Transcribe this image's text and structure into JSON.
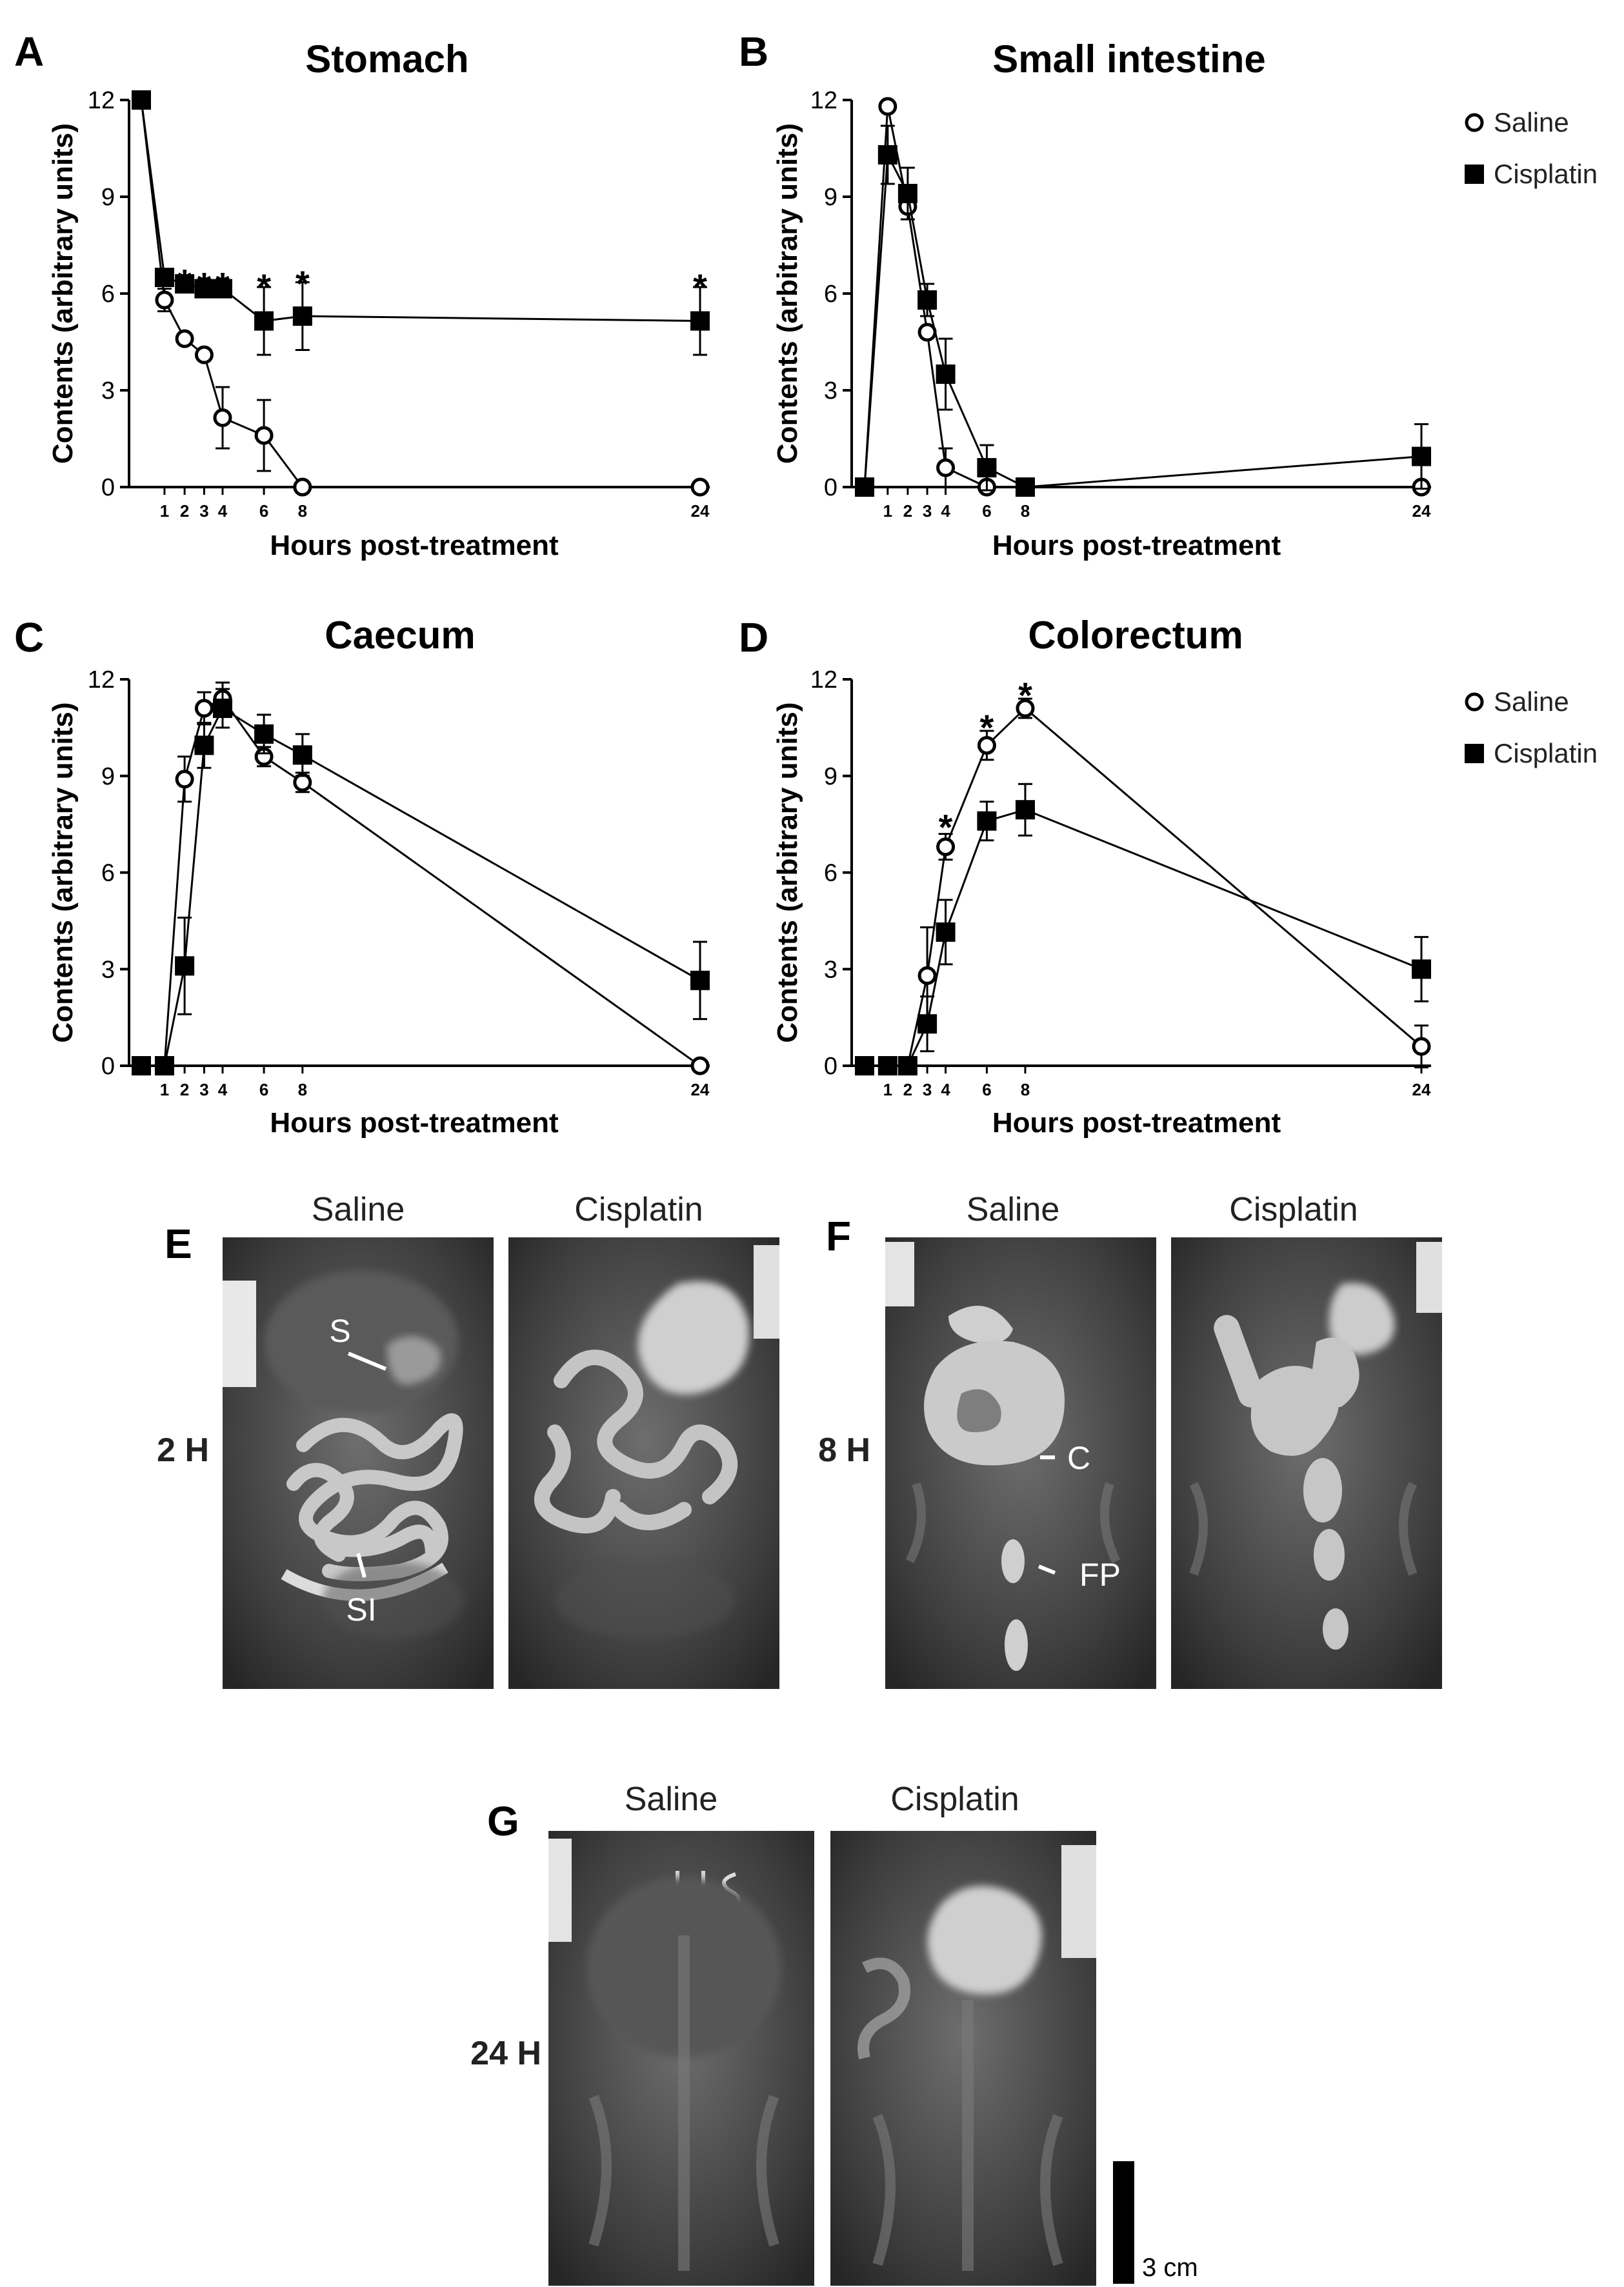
{
  "chart_data": [
    {
      "panel": "A",
      "type": "line",
      "title": "Stomach",
      "xlabel": "Hours post-treatment",
      "ylabel": "Contents (arbitrary units)",
      "ylim": [
        0,
        12
      ],
      "yticks": [
        "0",
        "3",
        "6",
        "9",
        "12"
      ],
      "xticks": [
        "1",
        "2",
        "3",
        "4",
        "6",
        "8",
        "24"
      ],
      "legend": false,
      "series": [
        {
          "name": "Saline",
          "marker": "open-circle",
          "points": [
            {
              "x": 0,
              "y": 12,
              "err": 0
            },
            {
              "x": 1,
              "y": 5.8,
              "err": 0.35
            },
            {
              "x": 2,
              "y": 4.6,
              "err": 0
            },
            {
              "x": 3,
              "y": 4.1,
              "err": 0
            },
            {
              "x": 4,
              "y": 2.15,
              "err": 0.95
            },
            {
              "x": 6,
              "y": 1.6,
              "err": 1.1
            },
            {
              "x": 8,
              "y": 0,
              "err": 0
            },
            {
              "x": 24,
              "y": 0,
              "err": 0
            }
          ]
        },
        {
          "name": "Cisplatin",
          "marker": "filled-square",
          "points": [
            {
              "x": 0,
              "y": 12,
              "err": 0
            },
            {
              "x": 1,
              "y": 6.5,
              "err": 0
            },
            {
              "x": 2,
              "y": 6.3,
              "err": 0
            },
            {
              "x": 3,
              "y": 6.15,
              "err": 0
            },
            {
              "x": 4,
              "y": 6.15,
              "err": 0
            },
            {
              "x": 6,
              "y": 5.15,
              "err": 1.05
            },
            {
              "x": 8,
              "y": 5.3,
              "err": 1.05
            },
            {
              "x": 24,
              "y": 5.15,
              "err": 1.05
            }
          ]
        }
      ],
      "significance": [
        {
          "x": 2,
          "y": 6.65
        },
        {
          "x": 3,
          "y": 6.55
        },
        {
          "x": 4,
          "y": 6.55
        },
        {
          "x": 6,
          "y": 6.5
        },
        {
          "x": 8,
          "y": 6.6
        },
        {
          "x": 24,
          "y": 6.5
        }
      ],
      "star_label": "*"
    },
    {
      "panel": "B",
      "type": "line",
      "title": "Small intestine",
      "xlabel": "Hours post-treatment",
      "ylabel": "Contents (arbitrary units)",
      "ylim": [
        0,
        12
      ],
      "yticks": [
        "0",
        "3",
        "6",
        "9",
        "12"
      ],
      "xticks": [
        "1",
        "2",
        "3",
        "4",
        "6",
        "8",
        "24"
      ],
      "legend": true,
      "legend_position": "top-right",
      "series": [
        {
          "name": "Saline",
          "marker": "open-circle",
          "points": [
            {
              "x": 0,
              "y": 0,
              "err": 0
            },
            {
              "x": 1,
              "y": 11.8,
              "err": 0
            },
            {
              "x": 2,
              "y": 8.7,
              "err": 0.4
            },
            {
              "x": 3,
              "y": 4.8,
              "err": 0
            },
            {
              "x": 4,
              "y": 0.6,
              "err": 0.6
            },
            {
              "x": 6,
              "y": 0,
              "err": 0
            },
            {
              "x": 8,
              "y": 0,
              "err": 0
            },
            {
              "x": 24,
              "y": 0,
              "err": 0
            }
          ]
        },
        {
          "name": "Cisplatin",
          "marker": "filled-square",
          "points": [
            {
              "x": 0,
              "y": 0,
              "err": 0
            },
            {
              "x": 1,
              "y": 10.3,
              "err": 0.9
            },
            {
              "x": 2,
              "y": 9.1,
              "err": 0.8
            },
            {
              "x": 3,
              "y": 5.8,
              "err": 0.5
            },
            {
              "x": 4,
              "y": 3.5,
              "err": 1.1
            },
            {
              "x": 6,
              "y": 0.6,
              "err": 0.7
            },
            {
              "x": 8,
              "y": 0,
              "err": 0
            },
            {
              "x": 24,
              "y": 0.95,
              "err": 1.0
            }
          ]
        }
      ]
    },
    {
      "panel": "C",
      "type": "line",
      "title": "Caecum",
      "xlabel": "Hours post-treatment",
      "ylabel": "Contents (arbitrary units)",
      "ylim": [
        0,
        12
      ],
      "yticks": [
        "0",
        "3",
        "6",
        "9",
        "12"
      ],
      "xticks": [
        "1",
        "2",
        "3",
        "4",
        "6",
        "8",
        "24"
      ],
      "legend": false,
      "series": [
        {
          "name": "Saline",
          "marker": "open-circle",
          "points": [
            {
              "x": 0,
              "y": 0,
              "err": 0
            },
            {
              "x": 1,
              "y": 0,
              "err": 0
            },
            {
              "x": 2,
              "y": 8.9,
              "err": 0.7
            },
            {
              "x": 3,
              "y": 11.1,
              "err": 0.5
            },
            {
              "x": 4,
              "y": 11.4,
              "err": 0.5
            },
            {
              "x": 6,
              "y": 9.6,
              "err": 0.3
            },
            {
              "x": 8,
              "y": 8.8,
              "err": 0.3
            },
            {
              "x": 24,
              "y": 0,
              "err": 0
            }
          ]
        },
        {
          "name": "Cisplatin",
          "marker": "filled-square",
          "points": [
            {
              "x": 0,
              "y": 0,
              "err": 0
            },
            {
              "x": 1,
              "y": 0,
              "err": 0
            },
            {
              "x": 2,
              "y": 3.1,
              "err": 1.5
            },
            {
              "x": 3,
              "y": 9.95,
              "err": 0.7
            },
            {
              "x": 4,
              "y": 11.1,
              "err": 0.6
            },
            {
              "x": 6,
              "y": 10.3,
              "err": 0.6
            },
            {
              "x": 8,
              "y": 9.65,
              "err": 0.65
            },
            {
              "x": 24,
              "y": 2.65,
              "err": 1.2
            }
          ]
        }
      ]
    },
    {
      "panel": "D",
      "type": "line",
      "title": "Colorectum",
      "xlabel": "Hours post-treatment",
      "ylabel": "Contents (arbitrary units)",
      "ylim": [
        0,
        12
      ],
      "yticks": [
        "0",
        "3",
        "6",
        "9",
        "12"
      ],
      "xticks": [
        "1",
        "2",
        "3",
        "4",
        "6",
        "8",
        "24"
      ],
      "legend": true,
      "legend_position": "top-right",
      "series": [
        {
          "name": "Saline",
          "marker": "open-circle",
          "points": [
            {
              "x": 0,
              "y": 0,
              "err": 0
            },
            {
              "x": 1,
              "y": 0,
              "err": 0
            },
            {
              "x": 2,
              "y": 0,
              "err": 0
            },
            {
              "x": 3,
              "y": 2.8,
              "err": 1.5
            },
            {
              "x": 4,
              "y": 6.8,
              "err": 0.4
            },
            {
              "x": 6,
              "y": 9.95,
              "err": 0.45
            },
            {
              "x": 8,
              "y": 11.1,
              "err": 0.3
            },
            {
              "x": 24,
              "y": 0.6,
              "err": 0.65
            }
          ]
        },
        {
          "name": "Cisplatin",
          "marker": "filled-square",
          "points": [
            {
              "x": 0,
              "y": 0,
              "err": 0
            },
            {
              "x": 1,
              "y": 0,
              "err": 0
            },
            {
              "x": 2,
              "y": 0,
              "err": 0
            },
            {
              "x": 3,
              "y": 1.3,
              "err": 0.85
            },
            {
              "x": 4,
              "y": 4.15,
              "err": 1.0
            },
            {
              "x": 6,
              "y": 7.6,
              "err": 0.6
            },
            {
              "x": 8,
              "y": 7.95,
              "err": 0.8
            },
            {
              "x": 24,
              "y": 3.0,
              "err": 1.0
            }
          ]
        }
      ],
      "significance": [
        {
          "x": 4,
          "y": 7.7
        },
        {
          "x": 6,
          "y": 10.8
        },
        {
          "x": 8,
          "y": 11.8
        }
      ],
      "star_label": "*"
    }
  ],
  "images": {
    "E": {
      "panel": "E",
      "time": "2 H",
      "left_label": "Saline",
      "right_label": "Cisplatin",
      "annotations": [
        "S",
        "SI"
      ]
    },
    "F": {
      "panel": "F",
      "time": "8 H",
      "left_label": "Saline",
      "right_label": "Cisplatin",
      "annotations": [
        "C",
        "FP"
      ]
    },
    "G": {
      "panel": "G",
      "time": "24 H",
      "left_label": "Saline",
      "right_label": "Cisplatin",
      "scale_bar": "3 cm"
    }
  }
}
